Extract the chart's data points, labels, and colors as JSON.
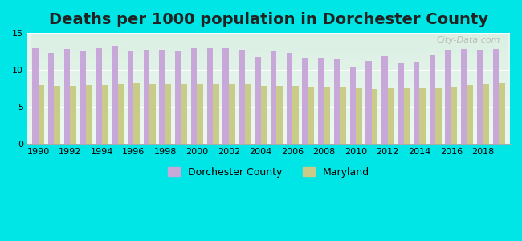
{
  "title": "Deaths per 1000 population in Dorchester County",
  "background_color": "#00e5e5",
  "plot_bg_top": "#e8f4f0",
  "plot_bg_bottom": "#e0f0e8",
  "years": [
    1990,
    1991,
    1992,
    1993,
    1994,
    1995,
    1996,
    1997,
    1998,
    1999,
    2000,
    2001,
    2002,
    2003,
    2004,
    2005,
    2006,
    2007,
    2008,
    2009,
    2010,
    2011,
    2012,
    2013,
    2014,
    2015,
    2016,
    2017,
    2018,
    2019
  ],
  "dorchester": [
    13.0,
    12.3,
    12.8,
    12.5,
    13.0,
    13.3,
    12.5,
    12.7,
    12.7,
    12.6,
    13.0,
    13.0,
    12.9,
    12.7,
    11.8,
    12.5,
    12.3,
    11.7,
    11.7,
    11.5,
    10.5,
    11.2,
    11.9,
    11.0,
    11.1,
    12.0,
    12.7,
    12.8,
    12.7,
    12.8
  ],
  "maryland": [
    8.0,
    7.9,
    7.9,
    8.0,
    8.0,
    8.2,
    8.3,
    8.2,
    8.1,
    8.2,
    8.2,
    8.1,
    8.1,
    8.1,
    7.9,
    7.9,
    7.9,
    7.8,
    7.8,
    7.8,
    7.5,
    7.4,
    7.5,
    7.5,
    7.6,
    7.6,
    7.8,
    8.0,
    8.2,
    8.3
  ],
  "dorchester_color": "#c8a8d8",
  "maryland_color": "#c8cc88",
  "ylim": [
    0,
    15
  ],
  "yticks": [
    0,
    5,
    10,
    15
  ],
  "xlabel_fontsize": 9,
  "title_fontsize": 14,
  "watermark": "City-Data.com",
  "legend_dorchester": "Dorchester County",
  "legend_maryland": "Maryland"
}
